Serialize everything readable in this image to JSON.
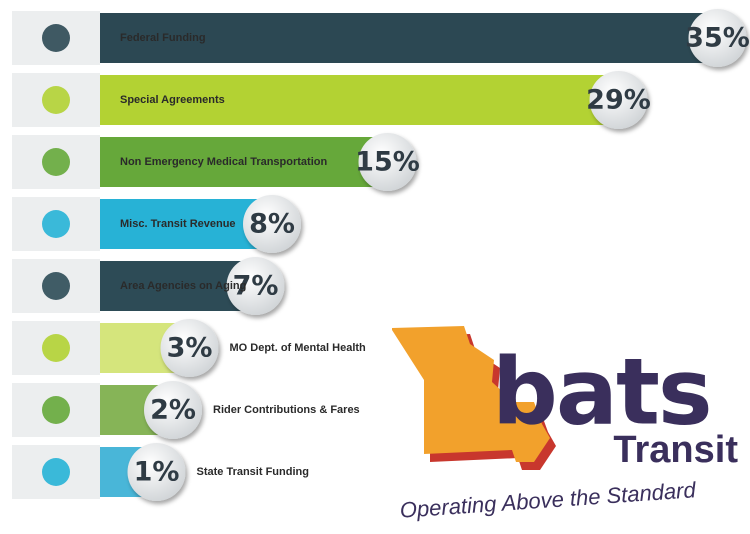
{
  "chart_data": {
    "type": "bar",
    "orientation": "horizontal",
    "categories": [
      "Federal Funding",
      "Special Agreements",
      "Non Emergency Medical Transportation",
      "Misc. Transit Revenue",
      "Area Agencies on Aging",
      "MO Dept. of Mental Health",
      "Rider Contributions & Fares",
      "State Transit Funding"
    ],
    "values": [
      35,
      29,
      15,
      8,
      7,
      3,
      2,
      1
    ],
    "value_labels": [
      "35%",
      "29%",
      "15%",
      "8%",
      "7%",
      "3%",
      "2%",
      "1%"
    ],
    "colors": [
      "#2c4853",
      "#b3d233",
      "#66a83a",
      "#27b2d6",
      "#2d4b56",
      "#d5e57c",
      "#86b457",
      "#49b6d8"
    ]
  },
  "logo": {
    "name": "bats",
    "subtitle": "Transit",
    "tagline": "Operating Above the Standard"
  }
}
